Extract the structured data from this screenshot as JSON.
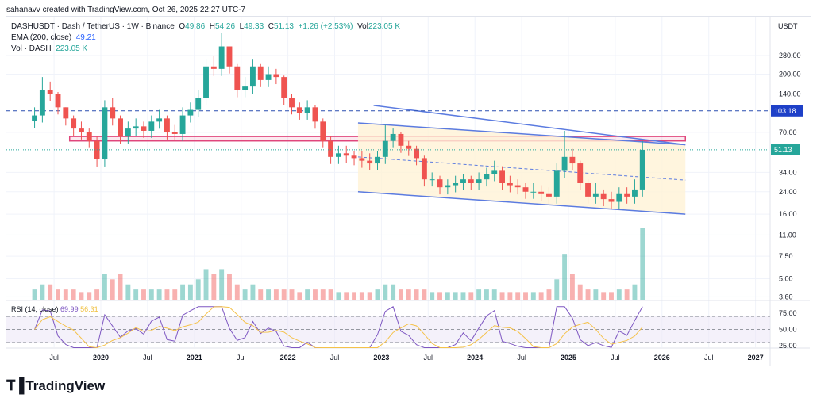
{
  "credit": "sahanavv created with TradingView.com, Oct 26, 2025 22:27 UTC-7",
  "legend": {
    "symbol": "DASHUSDT · Dash / TetherUS · 1W · Binance",
    "o_label": "O",
    "o": "49.86",
    "h_label": "H",
    "h": "54.26",
    "l_label": "L",
    "l": "49.33",
    "c_label": "C",
    "c": "51.13",
    "change": "+1.26 (+2.53%)",
    "vol_label": "Vol",
    "vol": "223.05 K",
    "ema_label": "EMA (200, close)",
    "ema": "49.21",
    "volume_label": "Vol · DASH",
    "volume": "223.05 K"
  },
  "rsi_legend": {
    "label": "RSI (14, close)",
    "rsi": "69.99",
    "ma": "56.31"
  },
  "logo": "TradingView",
  "colors": {
    "up": "#26a69a",
    "down": "#ef5350",
    "ema": "#2962ff",
    "rsi": "#7e57c2",
    "rsi_ma": "#f5c24a",
    "channel_fill": "#fff3d6",
    "channel_line": "#5b7be0",
    "zone": "#e0467c"
  },
  "chart_data": {
    "type": "candlestick",
    "scale": "log",
    "price_unit": "USDT",
    "price_ticks": [
      280,
      200,
      140,
      70,
      34,
      24,
      16,
      11,
      7.5,
      5,
      3.6
    ],
    "price_tick_labels": [
      "280.00",
      "200.00",
      "140.00",
      "70.00",
      "34.00",
      "24.00",
      "16.00",
      "11.00",
      "7.50",
      "5.00",
      "3.60"
    ],
    "rsi_ticks": [
      "75.00",
      "50.00",
      "25.00"
    ],
    "time_ticks": [
      {
        "t": 2019.5,
        "label": "Jul"
      },
      {
        "t": 2020,
        "label": "2020"
      },
      {
        "t": 2020.5,
        "label": "Jul"
      },
      {
        "t": 2021,
        "label": "2021"
      },
      {
        "t": 2021.5,
        "label": "Jul"
      },
      {
        "t": 2022,
        "label": "2022"
      },
      {
        "t": 2022.5,
        "label": "Jul"
      },
      {
        "t": 2023,
        "label": "2023"
      },
      {
        "t": 2023.5,
        "label": "Jul"
      },
      {
        "t": 2024,
        "label": "2024"
      },
      {
        "t": 2024.5,
        "label": "Jul"
      },
      {
        "t": 2025,
        "label": "2025"
      },
      {
        "t": 2025.5,
        "label": "Jul"
      },
      {
        "t": 2026,
        "label": "2026"
      },
      {
        "t": 2026.5,
        "label": "Jul"
      },
      {
        "t": 2027,
        "label": "2027"
      }
    ],
    "start": "2019-04",
    "closes": [
      95,
      150,
      140,
      110,
      90,
      75,
      70,
      60,
      43,
      110,
      90,
      65,
      75,
      78,
      72,
      85,
      90,
      70,
      68,
      95,
      105,
      130,
      230,
      220,
      330,
      230,
      150,
      160,
      230,
      180,
      200,
      190,
      130,
      110,
      100,
      110,
      85,
      60,
      45,
      48,
      46,
      44,
      42,
      40,
      45,
      60,
      68,
      55,
      52,
      44,
      30,
      30,
      26,
      27,
      28,
      30,
      28,
      30,
      33,
      35,
      28,
      27,
      26,
      24,
      24,
      23,
      22,
      35,
      45,
      40,
      28,
      22,
      23,
      21,
      20,
      23,
      22,
      25,
      51.13
    ],
    "highs": [
      110,
      190,
      175,
      145,
      110,
      95,
      85,
      75,
      65,
      125,
      130,
      95,
      85,
      90,
      85,
      95,
      105,
      95,
      80,
      110,
      120,
      150,
      260,
      280,
      420,
      330,
      240,
      190,
      260,
      240,
      230,
      220,
      195,
      140,
      120,
      125,
      115,
      90,
      65,
      55,
      55,
      50,
      50,
      48,
      50,
      80,
      75,
      70,
      60,
      55,
      46,
      34,
      32,
      30,
      32,
      33,
      32,
      34,
      37,
      42,
      38,
      32,
      30,
      28,
      28,
      27,
      26,
      40,
      72,
      52,
      42,
      30,
      28,
      25,
      24,
      26,
      26,
      30,
      60
    ],
    "volumes": [
      2,
      3,
      3,
      2,
      2,
      2,
      1.5,
      1.5,
      2,
      5,
      4,
      5,
      3,
      2,
      2,
      2,
      2,
      2,
      2,
      3,
      3,
      4,
      6,
      5,
      6,
      5,
      3,
      2,
      3,
      2,
      2,
      2,
      2,
      2,
      1.5,
      2,
      2,
      2,
      2,
      1.5,
      1.5,
      1.5,
      1.5,
      1.5,
      2,
      3,
      3,
      2,
      2,
      2,
      2,
      1.5,
      1.5,
      1.5,
      1.5,
      1.5,
      1.5,
      2,
      2,
      2,
      1.5,
      1.5,
      1.5,
      1.5,
      1.5,
      1.5,
      2,
      4,
      9,
      5,
      3,
      2,
      2,
      1.5,
      1.5,
      2,
      2,
      3,
      14
    ],
    "ema_last": 49.21,
    "last_price": 51.13,
    "last_price_label": "51.13",
    "hline": {
      "price": 103.18,
      "label": "103.18"
    },
    "zone": {
      "from": "2019-09",
      "to": "2026-04",
      "top": 65,
      "bottom": 60
    },
    "channel": {
      "from": "2022-10",
      "to": "2026-04",
      "top": [
        83,
        56
      ],
      "mid": [
        45,
        29.6
      ],
      "bottom": [
        24,
        16
      ]
    },
    "trendline": {
      "from": "2022-12",
      "to": "2026-04",
      "prices": [
        114,
        56
      ]
    }
  }
}
